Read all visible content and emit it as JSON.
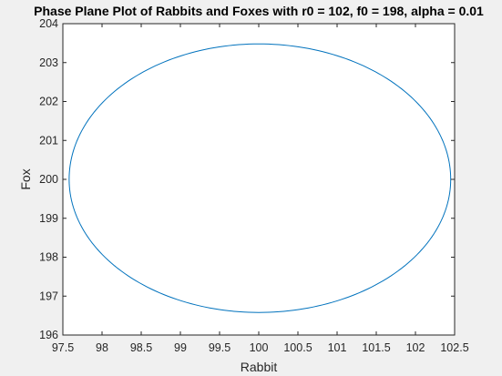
{
  "chart_data": {
    "type": "line",
    "title": "Phase Plane Plot of Rabbits and Foxes with r0 = 102, f0 = 198, alpha = 0.01",
    "xlabel": "Rabbit",
    "ylabel": "Fox",
    "xlim": [
      97.5,
      102.5
    ],
    "ylim": [
      196,
      204
    ],
    "xticks": [
      97.5,
      98,
      98.5,
      99,
      99.5,
      100,
      100.5,
      101,
      101.5,
      102,
      102.5
    ],
    "xtick_labels": [
      "97.5",
      "98",
      "98.5",
      "99",
      "99.5",
      "100",
      "100.5",
      "101",
      "101.5",
      "102",
      "102.5"
    ],
    "yticks": [
      196,
      197,
      198,
      199,
      200,
      201,
      202,
      203,
      204
    ],
    "ytick_labels": [
      "196",
      "197",
      "198",
      "199",
      "200",
      "201",
      "202",
      "203",
      "204"
    ],
    "grid": false,
    "series": [
      {
        "color": "#0072bd",
        "trajectory": {
          "shape": "closed-orbit",
          "center": [
            100,
            200
          ],
          "x_range": [
            97.58,
            102.45
          ],
          "y_range": [
            196.58,
            203.48
          ]
        }
      }
    ]
  },
  "colors": {
    "figure_background": "#f0f0f0",
    "axes_background": "#ffffff",
    "axes_color": "#262626",
    "series": "#0072bd"
  }
}
